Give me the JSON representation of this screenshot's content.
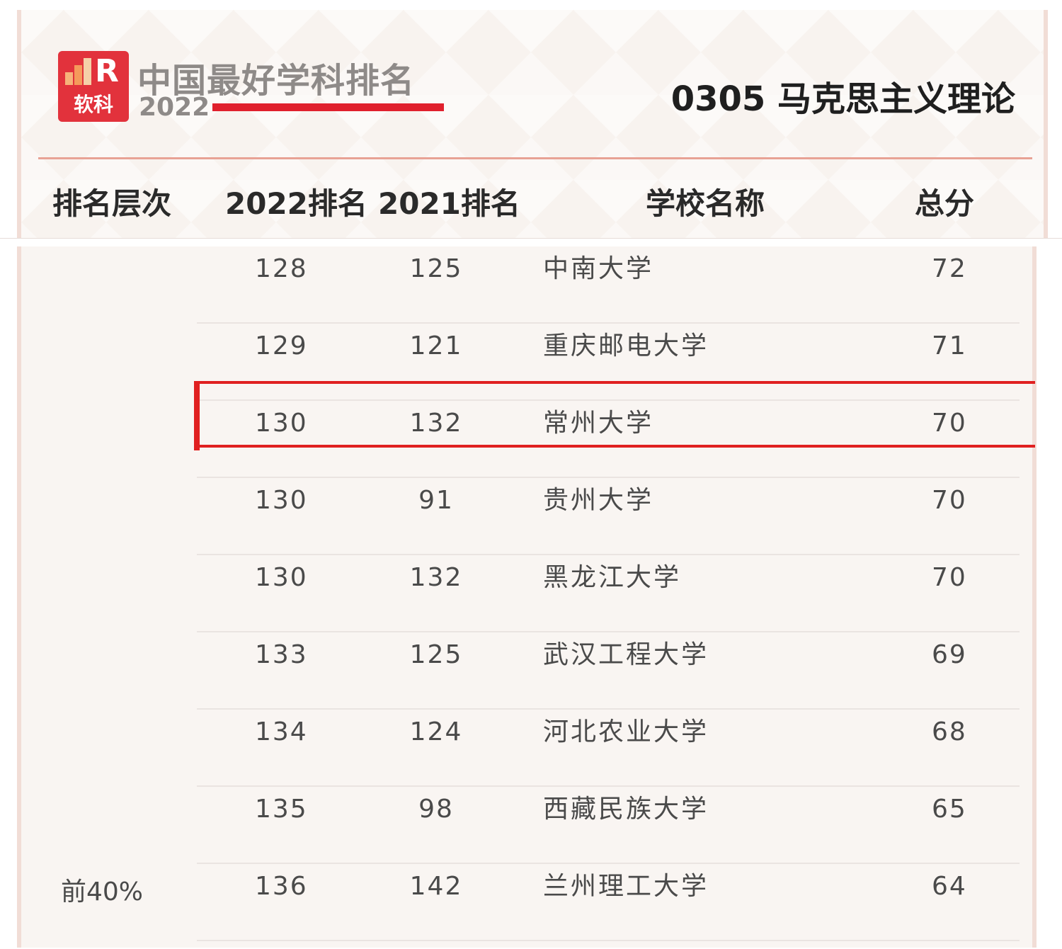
{
  "brand": {
    "logo_text": "软科",
    "title": "中国最好学科排名",
    "year": "2022"
  },
  "subject": "0305  马克思主义理论",
  "columns": [
    "排名层次",
    "2022排名",
    "2021排名",
    "学校名称",
    "总分"
  ],
  "rows": [
    {
      "rank_2022": "128",
      "rank_2021": "125",
      "school": "中南大学",
      "score": "72"
    },
    {
      "rank_2022": "129",
      "rank_2021": "121",
      "school": "重庆邮电大学",
      "score": "71"
    },
    {
      "rank_2022": "130",
      "rank_2021": "132",
      "school": "常州大学",
      "score": "70",
      "highlighted": true
    },
    {
      "rank_2022": "130",
      "rank_2021": "91",
      "school": "贵州大学",
      "score": "70"
    },
    {
      "rank_2022": "130",
      "rank_2021": "132",
      "school": "黑龙江大学",
      "score": "70"
    },
    {
      "rank_2022": "133",
      "rank_2021": "125",
      "school": "武汉工程大学",
      "score": "69"
    },
    {
      "rank_2022": "134",
      "rank_2021": "124",
      "school": "河北农业大学",
      "score": "68"
    },
    {
      "rank_2022": "135",
      "rank_2021": "98",
      "school": "西藏民族大学",
      "score": "65"
    },
    {
      "rank_2022": "136",
      "rank_2021": "142",
      "school": "兰州理工大学",
      "score": "64"
    }
  ],
  "tier_label": "前40%",
  "colors": {
    "brand_red": "#e2323c",
    "highlight_red": "#e02020",
    "text_gray": "#4a4a4a"
  }
}
